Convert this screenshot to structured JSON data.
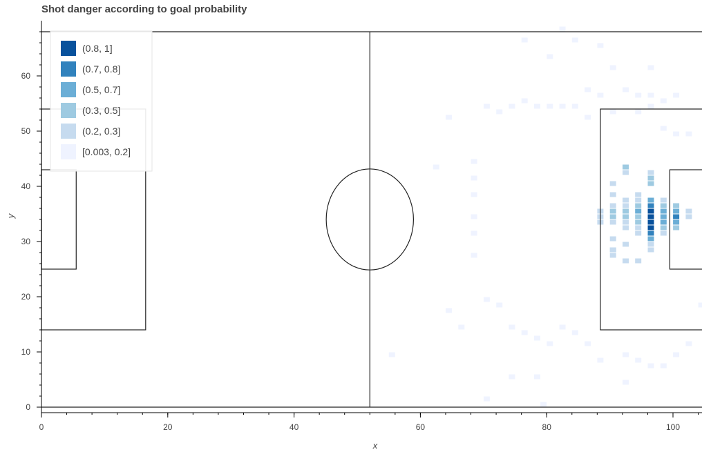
{
  "chart_data": {
    "type": "heatmap",
    "title": "Shot danger according to goal probability",
    "xlabel": "x",
    "ylabel": "y",
    "xlim": [
      0,
      105
    ],
    "ylim": [
      -1,
      69
    ],
    "x_ticks": [
      0,
      20,
      40,
      60,
      80,
      100
    ],
    "y_ticks": [
      0,
      10,
      20,
      30,
      40,
      50,
      60
    ],
    "grid": false,
    "legend_position": "top-left",
    "legend": [
      {
        "label": "(0.8, 1]",
        "color": "#08519c"
      },
      {
        "label": "(0.7, 0.8]",
        "color": "#3182bd"
      },
      {
        "label": "(0.5, 0.7]",
        "color": "#6baed6"
      },
      {
        "label": "(0.3, 0.5]",
        "color": "#9ecae1"
      },
      {
        "label": "(0.2, 0.3]",
        "color": "#c6dbef"
      },
      {
        "label": "[0.003, 0.2]",
        "color": "#eff3ff"
      }
    ],
    "pitch": {
      "length": 105,
      "width": 68,
      "halfway_x": 52,
      "centre_circle": {
        "cx": 52,
        "cy": 34,
        "r": 9.15
      },
      "left_penalty_area": {
        "x1": 0,
        "x2": 16.5,
        "y1": 14,
        "y2": 54
      },
      "left_goal_area": {
        "x1": 0,
        "x2": 5.5,
        "y1": 25,
        "y2": 43
      },
      "right_penalty_area": {
        "x1": 88.5,
        "x2": 105,
        "y1": 14,
        "y2": 54
      },
      "right_goal_area": {
        "x1": 99.5,
        "x2": 105,
        "y1": 25,
        "y2": 43
      }
    },
    "cells_note": "cells given as [x, y, bin] where bin indexes legend (0 = highest)",
    "cells": [
      [
        96.5,
        35.5,
        0
      ],
      [
        96.5,
        34.5,
        0
      ],
      [
        96.5,
        33.5,
        0
      ],
      [
        96.5,
        32.5,
        0
      ],
      [
        96.5,
        36.5,
        1
      ],
      [
        96.5,
        31.5,
        1
      ],
      [
        96.5,
        30.5,
        2
      ],
      [
        96.5,
        37.5,
        2
      ],
      [
        100.5,
        34.5,
        1
      ],
      [
        100.5,
        35.5,
        2
      ],
      [
        100.5,
        33.5,
        2
      ],
      [
        100.5,
        36.5,
        3
      ],
      [
        100.5,
        32.5,
        3
      ],
      [
        98.5,
        35.5,
        2
      ],
      [
        98.5,
        34.5,
        2
      ],
      [
        98.5,
        33.5,
        2
      ],
      [
        98.5,
        36.5,
        3
      ],
      [
        98.5,
        32.5,
        3
      ],
      [
        98.5,
        37.5,
        4
      ],
      [
        98.5,
        31.5,
        4
      ],
      [
        94.5,
        35.5,
        2
      ],
      [
        94.5,
        34.5,
        3
      ],
      [
        94.5,
        33.5,
        3
      ],
      [
        94.5,
        36.5,
        3
      ],
      [
        94.5,
        32.5,
        4
      ],
      [
        94.5,
        37.5,
        4
      ],
      [
        94.5,
        38.5,
        4
      ],
      [
        94.5,
        31.5,
        4
      ],
      [
        92.5,
        35.5,
        3
      ],
      [
        92.5,
        34.5,
        3
      ],
      [
        92.5,
        36.5,
        4
      ],
      [
        92.5,
        33.5,
        4
      ],
      [
        92.5,
        37.5,
        4
      ],
      [
        92.5,
        32.5,
        4
      ],
      [
        90.5,
        35.5,
        3
      ],
      [
        90.5,
        34.5,
        3
      ],
      [
        90.5,
        38.5,
        4
      ],
      [
        90.5,
        33.5,
        4
      ],
      [
        90.5,
        36.5,
        4
      ],
      [
        90.5,
        30.5,
        4
      ],
      [
        88.5,
        35.5,
        4
      ],
      [
        88.5,
        34.5,
        4
      ],
      [
        88.5,
        33.5,
        4
      ],
      [
        96.5,
        40.5,
        3
      ],
      [
        96.5,
        41.5,
        3
      ],
      [
        96.5,
        42.5,
        4
      ],
      [
        96.5,
        29.5,
        4
      ],
      [
        96.5,
        28.5,
        4
      ],
      [
        92.5,
        43.5,
        3
      ],
      [
        92.5,
        42.5,
        4
      ],
      [
        90.5,
        40.5,
        4
      ],
      [
        90.5,
        28.5,
        4
      ],
      [
        90.5,
        27.5,
        4
      ],
      [
        92.5,
        26.5,
        4
      ],
      [
        94.5,
        26.5,
        4
      ],
      [
        102.5,
        34.5,
        4
      ],
      [
        102.5,
        35.5,
        4
      ],
      [
        70.5,
        54.5,
        5
      ],
      [
        72.5,
        53.5,
        5
      ],
      [
        74.5,
        54.5,
        5
      ],
      [
        76.5,
        55.5,
        5
      ],
      [
        78.5,
        54.5,
        5
      ],
      [
        80.5,
        54.5,
        5
      ],
      [
        82.5,
        54.5,
        5
      ],
      [
        84.5,
        54.5,
        5
      ],
      [
        86.5,
        52.5,
        5
      ],
      [
        90.5,
        53.5,
        5
      ],
      [
        94.5,
        53.5,
        5
      ],
      [
        96.5,
        54.5,
        5
      ],
      [
        98.5,
        50.5,
        5
      ],
      [
        100.5,
        49.5,
        5
      ],
      [
        102.5,
        49.5,
        5
      ],
      [
        88.5,
        56.5,
        5
      ],
      [
        92.5,
        57.5,
        5
      ],
      [
        94.5,
        56.5,
        5
      ],
      [
        96.5,
        56.5,
        5
      ],
      [
        86.5,
        57.5,
        5
      ],
      [
        98.5,
        55.5,
        5
      ],
      [
        66.5,
        14.5,
        5
      ],
      [
        64.5,
        17.5,
        5
      ],
      [
        70.5,
        19.5,
        5
      ],
      [
        72.5,
        18.5,
        5
      ],
      [
        74.5,
        14.5,
        5
      ],
      [
        76.5,
        13.5,
        5
      ],
      [
        78.5,
        12.5,
        5
      ],
      [
        80.5,
        11.5,
        5
      ],
      [
        82.5,
        14.5,
        5
      ],
      [
        84.5,
        13.5,
        5
      ],
      [
        86.5,
        11.5,
        5
      ],
      [
        88.5,
        8.5,
        5
      ],
      [
        92.5,
        9.5,
        5
      ],
      [
        94.5,
        8.5,
        5
      ],
      [
        96.5,
        7.5,
        5
      ],
      [
        98.5,
        7.5,
        5
      ],
      [
        100.5,
        9.5,
        5
      ],
      [
        102.5,
        11.5,
        5
      ],
      [
        104.5,
        18.5,
        5
      ],
      [
        62.5,
        43.5,
        5
      ],
      [
        64.5,
        52.5,
        5
      ],
      [
        68.5,
        44.5,
        5
      ],
      [
        68.5,
        41.5,
        5
      ],
      [
        68.5,
        38.5,
        5
      ],
      [
        68.5,
        34.5,
        5
      ],
      [
        68.5,
        31.5,
        5
      ],
      [
        68.5,
        27.5,
        5
      ],
      [
        55.5,
        9.5,
        5
      ],
      [
        70.5,
        1.5,
        5
      ],
      [
        74.5,
        5.5,
        5
      ],
      [
        78.5,
        5.5,
        5
      ],
      [
        92.5,
        4.5,
        5
      ],
      [
        79.5,
        0.5,
        5
      ],
      [
        76.5,
        66.5,
        5
      ],
      [
        80.5,
        63.5,
        5
      ],
      [
        82.5,
        68.5,
        5
      ],
      [
        84.5,
        66.5,
        5
      ],
      [
        88.5,
        65.5,
        5
      ],
      [
        90.5,
        61.5,
        5
      ],
      [
        96.5,
        61.5,
        5
      ],
      [
        100.5,
        56.5,
        5
      ],
      [
        90.5,
        28.5,
        4
      ],
      [
        92.5,
        29.5,
        4
      ]
    ]
  }
}
